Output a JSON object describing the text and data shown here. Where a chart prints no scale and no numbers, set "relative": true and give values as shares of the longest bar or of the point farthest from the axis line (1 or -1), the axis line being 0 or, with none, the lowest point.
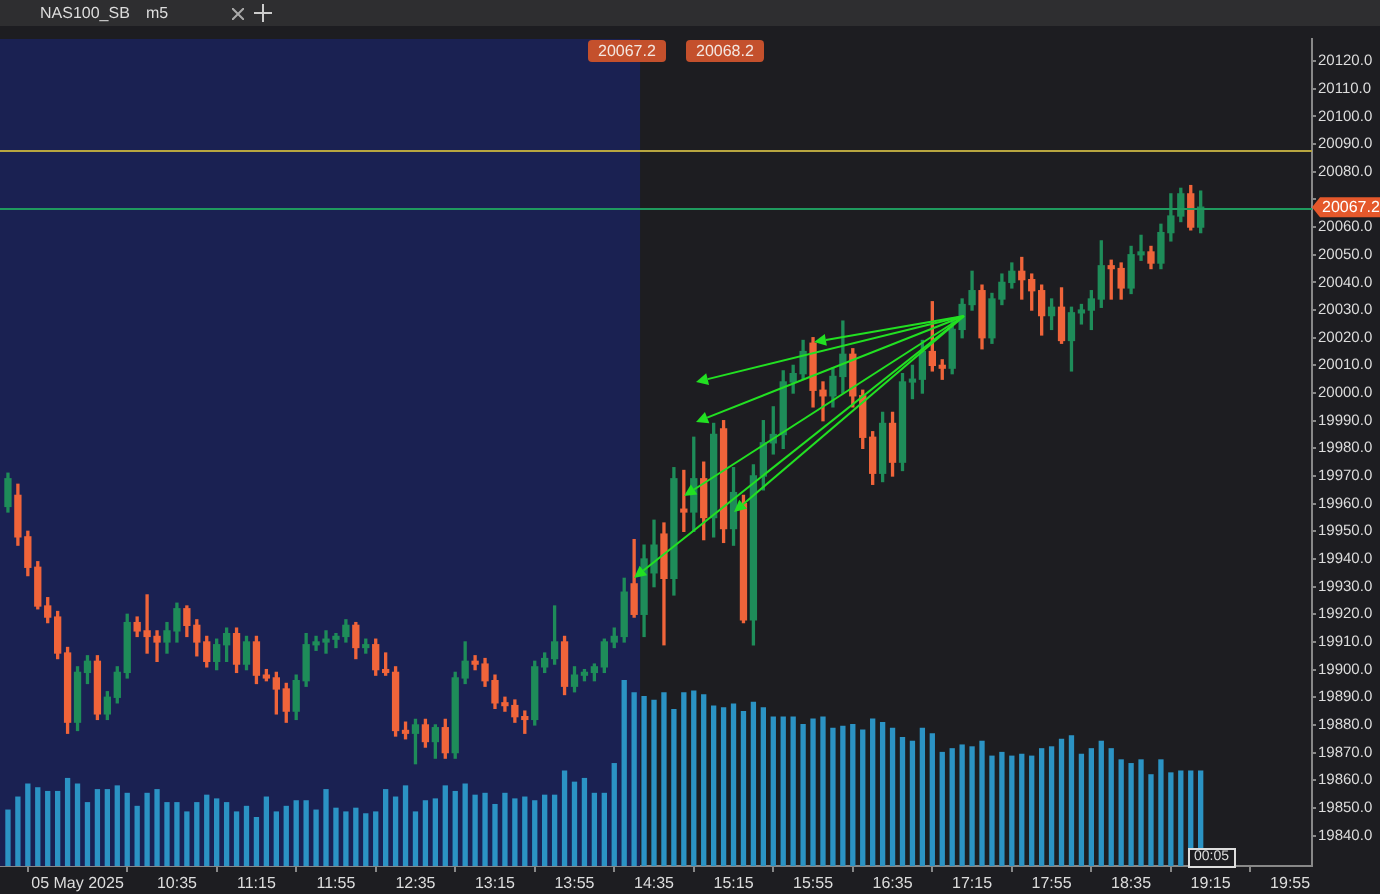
{
  "chart_data": [
    {
      "type": "candlestick",
      "title": "NAS100_SB",
      "annotations": [
        "20067.2",
        "20068.2",
        "m5",
        "00:05"
      ],
      "grid": false,
      "x": [
        "2025-05-05T09:10",
        "2025-05-05T09:15",
        "2025-05-05T09:20",
        "2025-05-05T09:25",
        "2025-05-05T09:30",
        "2025-05-05T09:35",
        "2025-05-05T09:40",
        "2025-05-05T09:45",
        "2025-05-05T09:50",
        "2025-05-05T09:55",
        "2025-05-05T10:00",
        "2025-05-05T10:05",
        "2025-05-05T10:10",
        "2025-05-05T10:15",
        "2025-05-05T10:20",
        "2025-05-05T10:25",
        "2025-05-05T10:30",
        "2025-05-05T10:35",
        "2025-05-05T10:40",
        "2025-05-05T10:45",
        "2025-05-05T10:50",
        "2025-05-05T10:55",
        "2025-05-05T11:00",
        "2025-05-05T11:05",
        "2025-05-05T11:10",
        "2025-05-05T11:15",
        "2025-05-05T11:20",
        "2025-05-05T11:25",
        "2025-05-05T11:30",
        "2025-05-05T11:35",
        "2025-05-05T11:40",
        "2025-05-05T11:45",
        "2025-05-05T11:50",
        "2025-05-05T11:55",
        "2025-05-05T12:00",
        "2025-05-05T12:05",
        "2025-05-05T12:10",
        "2025-05-05T12:15",
        "2025-05-05T12:20",
        "2025-05-05T12:25",
        "2025-05-05T12:30",
        "2025-05-05T12:35",
        "2025-05-05T12:40",
        "2025-05-05T12:45",
        "2025-05-05T12:50",
        "2025-05-05T12:55",
        "2025-05-05T13:00",
        "2025-05-05T13:05",
        "2025-05-05T13:10",
        "2025-05-05T13:15",
        "2025-05-05T13:20",
        "2025-05-05T13:25",
        "2025-05-05T13:30",
        "2025-05-05T13:35",
        "2025-05-05T13:40",
        "2025-05-05T13:45",
        "2025-05-05T13:50",
        "2025-05-05T13:55",
        "2025-05-05T14:00",
        "2025-05-05T14:05",
        "2025-05-05T14:10",
        "2025-05-05T14:15",
        "2025-05-05T14:20",
        "2025-05-05T14:25",
        "2025-05-05T14:30",
        "2025-05-05T14:35",
        "2025-05-05T14:40",
        "2025-05-05T14:45",
        "2025-05-05T14:50",
        "2025-05-05T14:55",
        "2025-05-05T15:00",
        "2025-05-05T15:05",
        "2025-05-05T15:10",
        "2025-05-05T15:15",
        "2025-05-05T15:20",
        "2025-05-05T15:25",
        "2025-05-05T15:30",
        "2025-05-05T15:35",
        "2025-05-05T15:40",
        "2025-05-05T15:45",
        "2025-05-05T15:50",
        "2025-05-05T15:55",
        "2025-05-05T16:00",
        "2025-05-05T16:05",
        "2025-05-05T16:10",
        "2025-05-05T16:15",
        "2025-05-05T16:20",
        "2025-05-05T16:25",
        "2025-05-05T16:30",
        "2025-05-05T16:35",
        "2025-05-05T16:40",
        "2025-05-05T16:45",
        "2025-05-05T16:50",
        "2025-05-05T16:55",
        "2025-05-05T17:00",
        "2025-05-05T17:05",
        "2025-05-05T17:10",
        "2025-05-05T17:15",
        "2025-05-05T17:20",
        "2025-05-05T17:25",
        "2025-05-05T17:30",
        "2025-05-05T17:35",
        "2025-05-05T17:40",
        "2025-05-05T17:45",
        "2025-05-05T17:50",
        "2025-05-05T17:55",
        "2025-05-05T18:00",
        "2025-05-05T18:05",
        "2025-05-05T18:10",
        "2025-05-05T18:15",
        "2025-05-05T18:20",
        "2025-05-05T18:25",
        "2025-05-05T18:30",
        "2025-05-05T18:35",
        "2025-05-05T18:40",
        "2025-05-05T18:45",
        "2025-05-05T18:50",
        "2025-05-05T18:55",
        "2025-05-05T19:00",
        "2025-05-05T19:05",
        "2025-05-05T19:10"
      ],
      "ohlc": [
        [
          19959,
          19971,
          19957,
          19969
        ],
        [
          19963,
          19967,
          19945,
          19948
        ],
        [
          19948,
          19950,
          19934,
          19937
        ],
        [
          19937,
          19939,
          19922,
          19923
        ],
        [
          19923,
          19926,
          19917,
          19919
        ],
        [
          19919,
          19921,
          19904,
          19906
        ],
        [
          19906,
          19908,
          19877,
          19881
        ],
        [
          19881,
          19901,
          19878,
          19899
        ],
        [
          19899,
          19905,
          19895,
          19903
        ],
        [
          19903,
          19905,
          19882,
          19884
        ],
        [
          19884,
          19892,
          19882,
          19890
        ],
        [
          19890,
          19901,
          19888,
          19899
        ],
        [
          19899,
          19920,
          19897,
          19917
        ],
        [
          19917,
          19919,
          19912,
          19914
        ],
        [
          19914,
          19927,
          19906,
          19912
        ],
        [
          19912,
          19914,
          19903,
          19910
        ],
        [
          19910,
          19917,
          19906,
          19914
        ],
        [
          19914,
          19924,
          19910,
          19922
        ],
        [
          19922,
          19923,
          19912,
          19916
        ],
        [
          19916,
          19918,
          19905,
          19910
        ],
        [
          19910,
          19912,
          19901,
          19903
        ],
        [
          19903,
          19911,
          19900,
          19909
        ],
        [
          19909,
          19915,
          19903,
          19913
        ],
        [
          19913,
          19915,
          19899,
          19902
        ],
        [
          19902,
          19912,
          19900,
          19910
        ],
        [
          19910,
          19912,
          19895,
          19898
        ],
        [
          19898,
          19900,
          19896,
          19897
        ],
        [
          19897,
          19899,
          19884,
          19893
        ],
        [
          19893,
          19895,
          19881,
          19885
        ],
        [
          19885,
          19898,
          19882,
          19896
        ],
        [
          19896,
          19913,
          19894,
          19909
        ],
        [
          19909,
          19912,
          19907,
          19910
        ],
        [
          19910,
          19914,
          19906,
          19911
        ],
        [
          19911,
          19913,
          19908,
          19912
        ],
        [
          19912,
          19918,
          19910,
          19916
        ],
        [
          19916,
          19917,
          19904,
          19908
        ],
        [
          19908,
          19911,
          19906,
          19909
        ],
        [
          19909,
          19911,
          19898,
          19900
        ],
        [
          19900,
          19906,
          19898,
          19899
        ],
        [
          19899,
          19901,
          19876,
          19878
        ],
        [
          19878,
          19881,
          19875,
          19877
        ],
        [
          19877,
          19882,
          19866,
          19880
        ],
        [
          19880,
          19882,
          19872,
          19874
        ],
        [
          19874,
          19880,
          19868,
          19879
        ],
        [
          19879,
          19882,
          19868,
          19870
        ],
        [
          19870,
          19899,
          19868,
          19897
        ],
        [
          19897,
          19910,
          19895,
          19903
        ],
        [
          19903,
          19905,
          19900,
          19902
        ],
        [
          19902,
          19904,
          19894,
          19896
        ],
        [
          19896,
          19898,
          19886,
          19888
        ],
        [
          19888,
          19890,
          19885,
          19887
        ],
        [
          19887,
          19889,
          19881,
          19883
        ],
        [
          19883,
          19885,
          19877,
          19882
        ],
        [
          19882,
          19903,
          19880,
          19901
        ],
        [
          19901,
          19906,
          19899,
          19904
        ],
        [
          19904,
          19923,
          19902,
          19910
        ],
        [
          19910,
          19912,
          19891,
          19894
        ],
        [
          19894,
          19901,
          19892,
          19898
        ],
        [
          19898,
          19900,
          19896,
          19899
        ],
        [
          19899,
          19902,
          19896,
          19901
        ],
        [
          19901,
          19911,
          19899,
          19910
        ],
        [
          19910,
          19915,
          19908,
          19912
        ],
        [
          19912,
          19933,
          19910,
          19928
        ],
        [
          19931,
          19947,
          19919,
          19920
        ],
        [
          19920,
          19945,
          19912,
          19940
        ],
        [
          19935,
          19954,
          19930,
          19945
        ],
        [
          19949,
          19953,
          19909,
          19933
        ],
        [
          19933,
          19973,
          19927,
          19969
        ],
        [
          19958,
          19972,
          19950,
          19957
        ],
        [
          19957,
          19984,
          19950,
          19969
        ],
        [
          19969,
          19975,
          19947,
          19955
        ],
        [
          19955,
          19989,
          19948,
          19985
        ],
        [
          19987,
          19990,
          19946,
          19951
        ],
        [
          19951,
          19973,
          19945,
          19964
        ],
        [
          19960,
          19963,
          19917,
          19918
        ],
        [
          19918,
          19974,
          19909,
          19970
        ],
        [
          19970,
          19990,
          19965,
          19982
        ],
        [
          19982,
          19995,
          19978,
          19985
        ],
        [
          19985,
          20008,
          19980,
          20004
        ],
        [
          20004,
          20010,
          20000,
          20007
        ],
        [
          20007,
          20019,
          20005,
          20015
        ],
        [
          20018,
          20020,
          19995,
          20001
        ],
        [
          20001,
          20004,
          19990,
          19999
        ],
        [
          19999,
          20009,
          19995,
          20006
        ],
        [
          20006,
          20026,
          20000,
          20014
        ],
        [
          20014,
          20016,
          19995,
          19999
        ],
        [
          19999,
          20001,
          19980,
          19984
        ],
        [
          19984,
          19986,
          19967,
          19971
        ],
        [
          19971,
          19993,
          19968,
          19989
        ],
        [
          19989,
          19993,
          19970,
          19975
        ],
        [
          19975,
          20007,
          19972,
          20004
        ],
        [
          20004,
          20010,
          19998,
          20005
        ],
        [
          20005,
          20019,
          20000,
          20015
        ],
        [
          20015,
          20033,
          20008,
          20010
        ],
        [
          20010,
          20012,
          20005,
          20009
        ],
        [
          20009,
          20027,
          20007,
          20023
        ],
        [
          20023,
          20034,
          20020,
          20032
        ],
        [
          20032,
          20044,
          20030,
          20037
        ],
        [
          20037,
          20039,
          20016,
          20020
        ],
        [
          20020,
          20036,
          20018,
          20034
        ],
        [
          20034,
          20043,
          20032,
          20040
        ],
        [
          20040,
          20047,
          20038,
          20044
        ],
        [
          20044,
          20049,
          20034,
          20041
        ],
        [
          20041,
          20043,
          20030,
          20037
        ],
        [
          20037,
          20039,
          20021,
          20028
        ],
        [
          20028,
          20034,
          20023,
          20031
        ],
        [
          20031,
          20038,
          20018,
          20019
        ],
        [
          20019,
          20031,
          20008,
          20029
        ],
        [
          20029,
          20032,
          20025,
          20030
        ],
        [
          20030,
          20037,
          20023,
          20034
        ],
        [
          20034,
          20055,
          20031,
          20046
        ],
        [
          20046,
          20048,
          20034,
          20045
        ],
        [
          20045,
          20047,
          20034,
          20038
        ],
        [
          20038,
          20053,
          20036,
          20050
        ],
        [
          20050,
          20057,
          20048,
          20051
        ],
        [
          20051,
          20053,
          20045,
          20047
        ],
        [
          20047,
          20061,
          20045,
          20058
        ],
        [
          20058,
          20072,
          20055,
          20064
        ],
        [
          20064,
          20074,
          20062,
          20072
        ],
        [
          20072,
          20075,
          20059,
          20060
        ],
        [
          20060,
          20073,
          20058,
          20067.2
        ]
      ],
      "colors": [
        "#1e8c59",
        "#f0643a",
        "#f0643a",
        "#f0643a",
        "#f0643a",
        "#f0643a",
        "#f0643a",
        "#1e8c59",
        "#1e8c59",
        "#f0643a",
        "#1e8c59",
        "#1e8c59",
        "#1e8c59",
        "#f0643a",
        "#f0643a",
        "#f0643a",
        "#1e8c59",
        "#1e8c59",
        "#f0643a",
        "#f0643a",
        "#f0643a",
        "#1e8c59",
        "#1e8c59",
        "#f0643a",
        "#1e8c59",
        "#f0643a",
        "#f0643a",
        "#f0643a",
        "#f0643a",
        "#1e8c59",
        "#1e8c59",
        "#1e8c59",
        "#1e8c59",
        "#1e8c59",
        "#1e8c59",
        "#f0643a",
        "#1e8c59",
        "#f0643a",
        "#f0643a",
        "#f0643a",
        "#f0643a",
        "#1e8c59",
        "#f0643a",
        "#1e8c59",
        "#f0643a",
        "#1e8c59",
        "#1e8c59",
        "#f0643a",
        "#f0643a",
        "#f0643a",
        "#f0643a",
        "#f0643a",
        "#f0643a",
        "#1e8c59",
        "#1e8c59",
        "#1e8c59",
        "#f0643a",
        "#1e8c59",
        "#1e8c59",
        "#1e8c59",
        "#1e8c59",
        "#1e8c59",
        "#1e8c59",
        "#f0643a",
        "#1e8c59",
        "#1e8c59",
        "#f0643a",
        "#1e8c59",
        "#f0643a",
        "#1e8c59",
        "#f0643a",
        "#1e8c59",
        "#f0643a",
        "#1e8c59",
        "#f0643a",
        "#1e8c59",
        "#1e8c59",
        "#1e8c59",
        "#1e8c59",
        "#1e8c59",
        "#1e8c59",
        "#f0643a",
        "#f0643a",
        "#1e8c59",
        "#1e8c59",
        "#f0643a",
        "#f0643a",
        "#f0643a",
        "#1e8c59",
        "#f0643a",
        "#1e8c59",
        "#1e8c59",
        "#1e8c59",
        "#f0643a",
        "#f0643a",
        "#1e8c59",
        "#1e8c59",
        "#1e8c59",
        "#f0643a",
        "#1e8c59",
        "#1e8c59",
        "#1e8c59",
        "#f0643a",
        "#f0643a",
        "#f0643a",
        "#1e8c59",
        "#f0643a",
        "#1e8c59",
        "#1e8c59",
        "#1e8c59",
        "#1e8c59",
        "#f0643a",
        "#f0643a",
        "#1e8c59",
        "#1e8c59",
        "#f0643a",
        "#1e8c59",
        "#1e8c59",
        "#1e8c59",
        "#f0643a",
        "#1e8c59"
      ],
      "xlim": [
        "2025-05-05T09:06",
        "2025-05-05T20:06"
      ],
      "xticks": [
        {
          "value": "2025-05-05T09:45",
          "label": "05 May 2025"
        },
        {
          "value": "2025-05-05T10:35",
          "label": "10:35"
        },
        {
          "value": "2025-05-05T11:15",
          "label": "11:15"
        },
        {
          "value": "2025-05-05T11:55",
          "label": "11:55"
        },
        {
          "value": "2025-05-05T12:35",
          "label": "12:35"
        },
        {
          "value": "2025-05-05T13:15",
          "label": "13:15"
        },
        {
          "value": "2025-05-05T13:55",
          "label": "13:55"
        },
        {
          "value": "2025-05-05T14:35",
          "label": "14:35"
        },
        {
          "value": "2025-05-05T15:15",
          "label": "15:15"
        },
        {
          "value": "2025-05-05T15:55",
          "label": "15:55"
        },
        {
          "value": "2025-05-05T16:35",
          "label": "16:35"
        },
        {
          "value": "2025-05-05T17:15",
          "label": "17:15"
        },
        {
          "value": "2025-05-05T17:55",
          "label": "17:55"
        },
        {
          "value": "2025-05-05T18:35",
          "label": "18:35"
        },
        {
          "value": "2025-05-05T19:15",
          "label": "19:15"
        },
        {
          "value": "2025-05-05T19:55",
          "label": "19:55"
        }
      ],
      "ylim": [
        19829,
        20128
      ],
      "yticks": [
        {
          "value": 19840,
          "label": "19840.0"
        },
        {
          "value": 19850,
          "label": "19850.0"
        },
        {
          "value": 19860,
          "label": "19860.0"
        },
        {
          "value": 19870,
          "label": "19870.0"
        },
        {
          "value": 19880,
          "label": "19880.0"
        },
        {
          "value": 19890,
          "label": "19890.0"
        },
        {
          "value": 19900,
          "label": "19900.0"
        },
        {
          "value": 19910,
          "label": "19910.0"
        },
        {
          "value": 19920,
          "label": "19920.0"
        },
        {
          "value": 19930,
          "label": "19930.0"
        },
        {
          "value": 19940,
          "label": "19940.0"
        },
        {
          "value": 19950,
          "label": "19950.0"
        },
        {
          "value": 19960,
          "label": "19960.0"
        },
        {
          "value": 19970,
          "label": "19970.0"
        },
        {
          "value": 19980,
          "label": "19980.0"
        },
        {
          "value": 19990,
          "label": "19990.0"
        },
        {
          "value": 20000,
          "label": "20000.0"
        },
        {
          "value": 20010,
          "label": "20010.0"
        },
        {
          "value": 20020,
          "label": "20020.0"
        },
        {
          "value": 20030,
          "label": "20030.0"
        },
        {
          "value": 20040,
          "label": "20040.0"
        },
        {
          "value": 20050,
          "label": "20050.0"
        },
        {
          "value": 20060,
          "label": "20060.0"
        },
        {
          "value": 20070,
          "label": null
        },
        {
          "value": 20080,
          "label": "20080.0"
        },
        {
          "value": 20090,
          "label": "20090.0"
        },
        {
          "value": 20100,
          "label": "20100.0"
        },
        {
          "value": 20110,
          "label": "20110.0"
        },
        {
          "value": 20120,
          "label": "20120.0"
        }
      ],
      "ref_lines": [
        {
          "axis": "y",
          "value": 20067.2,
          "label": "20067.2",
          "color": "#1f9a5e"
        },
        {
          "axis": "y",
          "value": 20088,
          "color": "#b8a640"
        }
      ],
      "bands": [
        {
          "axis": "x",
          "from": "2025-05-05T09:06",
          "to": "2025-05-05T14:28",
          "color": "#1a2152"
        }
      ]
    },
    {
      "type": "bar",
      "relative": true,
      "color": "#2b93c4",
      "tick_labels": false,
      "xlim": [
        "2025-05-05T09:06",
        "2025-05-05T20:06"
      ],
      "x": [
        "2025-05-05T09:10",
        "2025-05-05T09:15",
        "2025-05-05T09:20",
        "2025-05-05T09:25",
        "2025-05-05T09:30",
        "2025-05-05T09:35",
        "2025-05-05T09:40",
        "2025-05-05T09:45",
        "2025-05-05T09:50",
        "2025-05-05T09:55",
        "2025-05-05T10:00",
        "2025-05-05T10:05",
        "2025-05-05T10:10",
        "2025-05-05T10:15",
        "2025-05-05T10:20",
        "2025-05-05T10:25",
        "2025-05-05T10:30",
        "2025-05-05T10:35",
        "2025-05-05T10:40",
        "2025-05-05T10:45",
        "2025-05-05T10:50",
        "2025-05-05T10:55",
        "2025-05-05T11:00",
        "2025-05-05T11:05",
        "2025-05-05T11:10",
        "2025-05-05T11:15",
        "2025-05-05T11:20",
        "2025-05-05T11:25",
        "2025-05-05T11:30",
        "2025-05-05T11:35",
        "2025-05-05T11:40",
        "2025-05-05T11:45",
        "2025-05-05T11:50",
        "2025-05-05T11:55",
        "2025-05-05T12:00",
        "2025-05-05T12:05",
        "2025-05-05T12:10",
        "2025-05-05T12:15",
        "2025-05-05T12:20",
        "2025-05-05T12:25",
        "2025-05-05T12:30",
        "2025-05-05T12:35",
        "2025-05-05T12:40",
        "2025-05-05T12:45",
        "2025-05-05T12:50",
        "2025-05-05T12:55",
        "2025-05-05T13:00",
        "2025-05-05T13:05",
        "2025-05-05T13:10",
        "2025-05-05T13:15",
        "2025-05-05T13:20",
        "2025-05-05T13:25",
        "2025-05-05T13:30",
        "2025-05-05T13:35",
        "2025-05-05T13:40",
        "2025-05-05T13:45",
        "2025-05-05T13:50",
        "2025-05-05T13:55",
        "2025-05-05T14:00",
        "2025-05-05T14:05",
        "2025-05-05T14:10",
        "2025-05-05T14:15",
        "2025-05-05T14:20",
        "2025-05-05T14:25",
        "2025-05-05T14:30",
        "2025-05-05T14:35",
        "2025-05-05T14:40",
        "2025-05-05T14:45",
        "2025-05-05T14:50",
        "2025-05-05T14:55",
        "2025-05-05T15:00",
        "2025-05-05T15:05",
        "2025-05-05T15:10",
        "2025-05-05T15:15",
        "2025-05-05T15:20",
        "2025-05-05T15:25",
        "2025-05-05T15:30",
        "2025-05-05T15:35",
        "2025-05-05T15:40",
        "2025-05-05T15:45",
        "2025-05-05T15:50",
        "2025-05-05T15:55",
        "2025-05-05T16:00",
        "2025-05-05T16:05",
        "2025-05-05T16:10",
        "2025-05-05T16:15",
        "2025-05-05T16:20",
        "2025-05-05T16:25",
        "2025-05-05T16:30",
        "2025-05-05T16:35",
        "2025-05-05T16:40",
        "2025-05-05T16:45",
        "2025-05-05T16:50",
        "2025-05-05T16:55",
        "2025-05-05T17:00",
        "2025-05-05T17:05",
        "2025-05-05T17:10",
        "2025-05-05T17:15",
        "2025-05-05T17:20",
        "2025-05-05T17:25",
        "2025-05-05T17:30",
        "2025-05-05T17:35",
        "2025-05-05T17:40",
        "2025-05-05T17:45",
        "2025-05-05T17:50",
        "2025-05-05T17:55",
        "2025-05-05T18:00",
        "2025-05-05T18:05",
        "2025-05-05T18:10",
        "2025-05-05T18:15",
        "2025-05-05T18:20",
        "2025-05-05T18:25",
        "2025-05-05T18:30",
        "2025-05-05T18:35",
        "2025-05-05T18:40",
        "2025-05-05T18:45",
        "2025-05-05T18:50",
        "2025-05-05T18:55",
        "2025-05-05T19:00",
        "2025-05-05T19:05",
        "2025-05-05T19:10"
      ],
      "values": [
        0.3,
        0.37,
        0.44,
        0.42,
        0.4,
        0.4,
        0.47,
        0.44,
        0.34,
        0.41,
        0.41,
        0.43,
        0.39,
        0.32,
        0.39,
        0.41,
        0.34,
        0.34,
        0.29,
        0.34,
        0.38,
        0.36,
        0.34,
        0.29,
        0.32,
        0.26,
        0.37,
        0.29,
        0.32,
        0.35,
        0.35,
        0.3,
        0.41,
        0.31,
        0.29,
        0.31,
        0.28,
        0.29,
        0.41,
        0.37,
        0.43,
        0.29,
        0.35,
        0.36,
        0.43,
        0.4,
        0.44,
        0.38,
        0.39,
        0.33,
        0.39,
        0.36,
        0.37,
        0.35,
        0.38,
        0.38,
        0.51,
        0.45,
        0.47,
        0.39,
        0.39,
        0.55,
        1,
        0.93,
        0.91,
        0.89,
        0.93,
        0.84,
        0.93,
        0.94,
        0.92,
        0.86,
        0.85,
        0.87,
        0.83,
        0.88,
        0.85,
        0.8,
        0.8,
        0.8,
        0.76,
        0.79,
        0.8,
        0.74,
        0.75,
        0.76,
        0.73,
        0.79,
        0.77,
        0.74,
        0.69,
        0.67,
        0.74,
        0.71,
        0.61,
        0.63,
        0.65,
        0.64,
        0.67,
        0.59,
        0.61,
        0.59,
        0.6,
        0.59,
        0.63,
        0.64,
        0.68,
        0.7,
        0.6,
        0.63,
        0.67,
        0.63,
        0.57,
        0.55,
        0.57,
        0.49,
        0.57,
        0.5,
        0.51,
        0.51,
        0.51
      ]
    }
  ]
}
